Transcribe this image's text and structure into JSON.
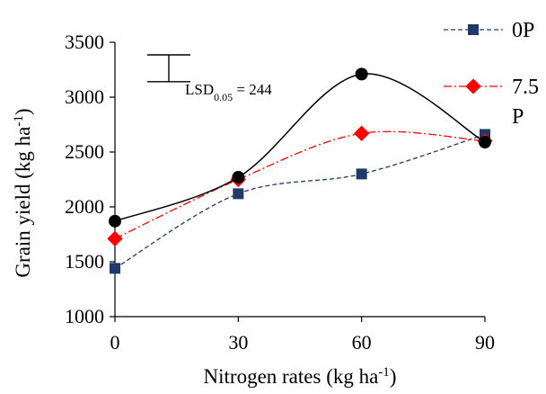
{
  "chart_data": {
    "type": "line",
    "xlabel": "Nitrogen rates (kg ha",
    "xlabel_sup": "-1",
    "xlabel_end": ")",
    "ylabel": "Grain yield (kg ha",
    "ylabel_sup": "-1",
    "ylabel_end": ")",
    "x": [
      0,
      30,
      60,
      90
    ],
    "x_ticks": [
      "0",
      "30",
      "60",
      "90"
    ],
    "xlim": [
      0,
      90
    ],
    "ylim": [
      1000,
      3500
    ],
    "y_ticks": [
      "1000",
      "1500",
      "2000",
      "2500",
      "3000",
      "3500"
    ],
    "y_tick_values": [
      1000,
      1500,
      2000,
      2500,
      3000,
      3500
    ],
    "grid": false,
    "legend_position": "top-right",
    "series": [
      {
        "name": "0P",
        "values": [
          1440,
          2120,
          2300,
          2660
        ],
        "color": "#1f3a68",
        "marker": "square",
        "line_style": "dashed"
      },
      {
        "name": "7.5 P",
        "legend_lines": [
          "7.5",
          "P"
        ],
        "values": [
          1710,
          2250,
          2670,
          2600
        ],
        "color": "#ff0000",
        "marker": "diamond",
        "line_style": "dash-dot"
      },
      {
        "values": [
          1870,
          2270,
          3210,
          2590
        ],
        "color": "#000000",
        "marker": "circle",
        "line_style": "solid"
      }
    ],
    "annotation": {
      "label_main": "LSD",
      "label_sub": "0.05",
      "label_end": " = 244",
      "value": 244
    }
  }
}
